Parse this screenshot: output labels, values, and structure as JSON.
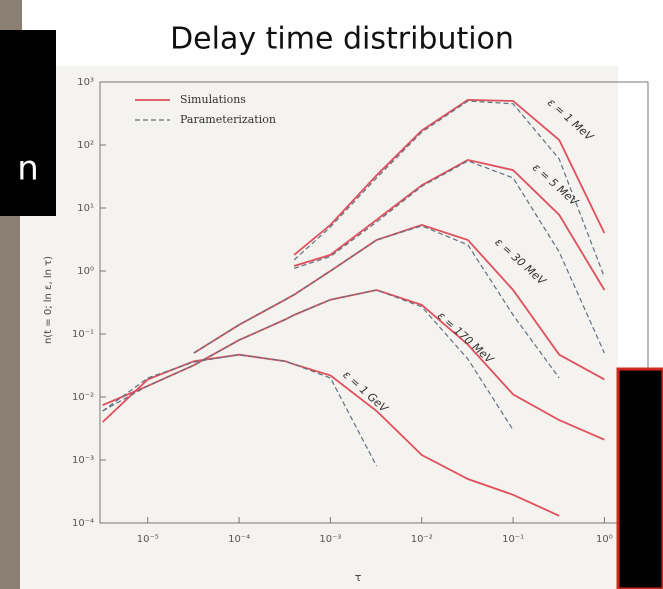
{
  "left_panel_text": "n",
  "chart_data": {
    "type": "line",
    "title": "Delay time distribution",
    "x_label": "τ",
    "y_label": "n(t = 0; ln ε, ln τ)",
    "log_x": true,
    "log_y": true,
    "xlim": [
      3e-06,
      3
    ],
    "ylim": [
      0.0001,
      1000
    ],
    "xticks": [
      {
        "value": 1e-05,
        "label": "10⁻⁵"
      },
      {
        "value": 0.0001,
        "label": "10⁻⁴"
      },
      {
        "value": 0.001,
        "label": "10⁻³"
      },
      {
        "value": 0.01,
        "label": "10⁻²"
      },
      {
        "value": 0.1,
        "label": "10⁻¹"
      },
      {
        "value": 1,
        "label": "10⁰"
      }
    ],
    "yticks": [
      {
        "value": 0.0001,
        "label": "10⁻⁴"
      },
      {
        "value": 0.001,
        "label": "10⁻³"
      },
      {
        "value": 0.01,
        "label": "10⁻²"
      },
      {
        "value": 0.1,
        "label": "10⁻¹"
      },
      {
        "value": 1,
        "label": "10⁰"
      },
      {
        "value": 10,
        "label": "10¹"
      },
      {
        "value": 100,
        "label": "10²"
      },
      {
        "value": 1000,
        "label": "10³"
      }
    ],
    "legend": "upper left",
    "x": [
      3.2e-06,
      1e-05,
      3.2e-05,
      0.0001,
      0.00032,
      0.0004,
      0.001,
      0.0032,
      0.01,
      0.032,
      0.1,
      0.32,
      1
    ],
    "annotations": [
      "ε = 1 MeV",
      "ε = 5 MeV",
      "ε = 30 MeV",
      "ε = 170 MeV",
      "ε = 1 GeV"
    ],
    "series": [
      {
        "name": "Simulations",
        "color": "#e0505c",
        "dashed": false,
        "curves": [
          [
            null,
            null,
            null,
            null,
            null,
            1.8,
            5.4,
            33,
            170,
            520,
            500,
            120,
            4
          ],
          [
            null,
            null,
            null,
            null,
            null,
            1.2,
            1.8,
            6.5,
            23,
            58,
            40,
            7.8,
            0.5
          ],
          [
            null,
            null,
            0.05,
            0.14,
            0.35,
            0.42,
            1.0,
            3.1,
            5.4,
            3.1,
            0.5,
            0.047,
            0.019
          ],
          [
            0.0074,
            0.015,
            0.032,
            0.08,
            0.17,
            0.2,
            0.35,
            0.5,
            0.29,
            0.068,
            0.011,
            0.0043,
            0.0021
          ],
          [
            0.004,
            0.019,
            0.037,
            0.047,
            0.037,
            0.033,
            0.022,
            0.006,
            0.0012,
            0.0005,
            0.00028,
            0.00013,
            null
          ]
        ]
      },
      {
        "name": "Parameterization",
        "color": "#5f7080",
        "dashed": true,
        "curves": [
          [
            null,
            null,
            null,
            null,
            null,
            1.5,
            5,
            30,
            160,
            500,
            450,
            60,
            0.8
          ],
          [
            null,
            null,
            null,
            null,
            null,
            1.1,
            1.7,
            6,
            22,
            56,
            30,
            2,
            0.05
          ],
          [
            null,
            null,
            0.05,
            0.14,
            0.35,
            0.42,
            1.0,
            3.1,
            5.2,
            2.6,
            0.2,
            0.02,
            null
          ],
          [
            0.006,
            0.015,
            0.032,
            0.08,
            0.17,
            0.2,
            0.35,
            0.5,
            0.27,
            0.04,
            0.003,
            null,
            null
          ],
          [
            0.006,
            0.02,
            0.036,
            0.047,
            0.037,
            0.033,
            0.02,
            0.0008,
            null,
            null,
            null,
            null,
            null
          ]
        ]
      }
    ]
  }
}
